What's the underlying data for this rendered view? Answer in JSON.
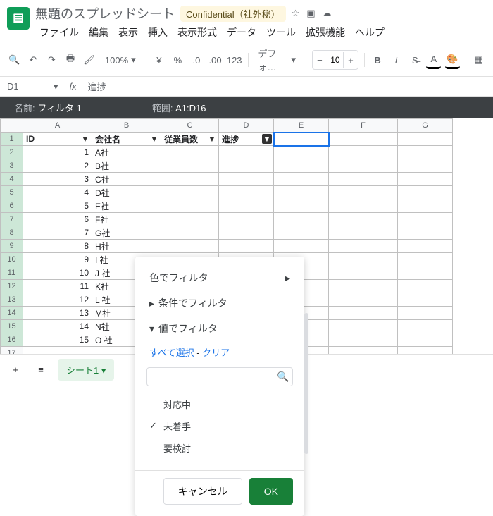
{
  "title": "無題のスプレッドシート",
  "confidential": "Confidential（社外秘）",
  "menus": [
    "ファイル",
    "編集",
    "表示",
    "挿入",
    "表示形式",
    "データ",
    "ツール",
    "拡張機能",
    "ヘルプ"
  ],
  "zoom": "100%",
  "font": "デフォ…",
  "fontsize": "10",
  "cellref": "D1",
  "cellval": "進捗",
  "filter": {
    "name_lbl": "名前:",
    "name": "フィルタ 1",
    "range_lbl": "範囲:",
    "range": "A1:D16"
  },
  "cols": [
    "A",
    "B",
    "C",
    "D",
    "E",
    "F",
    "G"
  ],
  "headers": [
    "ID",
    "会社名",
    "従業員数",
    "進捗"
  ],
  "rows": [
    [
      1,
      "A社"
    ],
    [
      2,
      "B社"
    ],
    [
      3,
      "C社"
    ],
    [
      4,
      "D社"
    ],
    [
      5,
      "E社"
    ],
    [
      6,
      "F社"
    ],
    [
      7,
      "G社"
    ],
    [
      8,
      "H社"
    ],
    [
      9,
      "I 社"
    ],
    [
      10,
      "J 社"
    ],
    [
      11,
      "K社"
    ],
    [
      12,
      "L 社"
    ],
    [
      13,
      "M社"
    ],
    [
      14,
      "N社"
    ],
    [
      15,
      "O 社"
    ]
  ],
  "popup": {
    "color": "色でフィルタ",
    "cond": "条件でフィルタ",
    "val": "値でフィルタ",
    "select_all": "すべて選択",
    "clear": "クリア",
    "dash": " - ",
    "items": [
      {
        "t": "対応中",
        "c": false
      },
      {
        "t": "未着手",
        "c": true
      },
      {
        "t": "要検討",
        "c": false
      }
    ],
    "cancel": "キャンセル",
    "ok": "OK"
  },
  "sheet_tab": "シート1"
}
